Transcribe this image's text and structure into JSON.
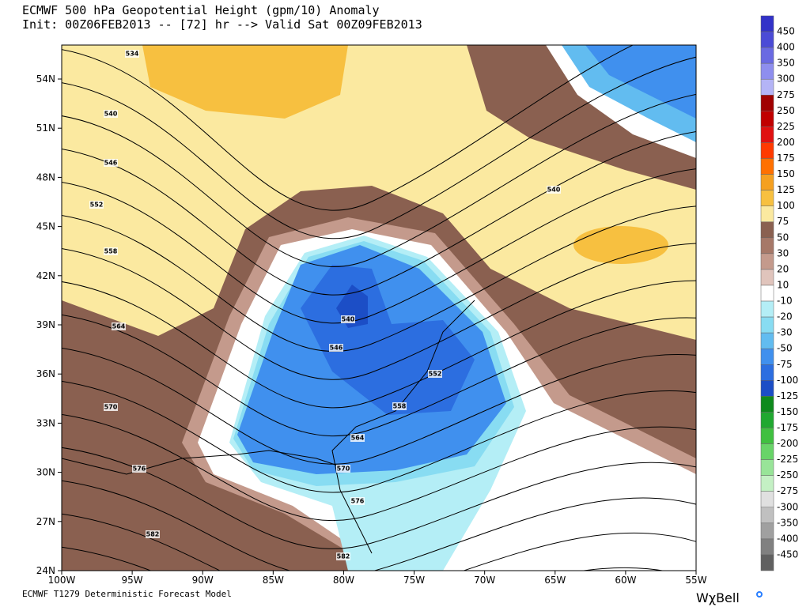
{
  "header": {
    "title": "ECMWF 500 hPa Geopotential Height (gpm/10) Anomaly",
    "subtitle": "Init: 00Z06FEB2013 -- [72] hr --> Valid Sat 00Z09FEB2013"
  },
  "map": {
    "lat_labels": [
      "54N",
      "51N",
      "48N",
      "45N",
      "42N",
      "39N",
      "36N",
      "33N",
      "30N",
      "27N",
      "24N"
    ],
    "lon_labels": [
      "100W",
      "95W",
      "90W",
      "85W",
      "80W",
      "75W",
      "70W",
      "65W",
      "60W",
      "55W"
    ],
    "contour_labels": [
      "534",
      "540",
      "546",
      "552",
      "558",
      "564",
      "570",
      "576",
      "582",
      "540",
      "546",
      "552",
      "558",
      "564",
      "570",
      "576",
      "582",
      "540"
    ]
  },
  "colorbar": {
    "labels": [
      "450",
      "400",
      "350",
      "300",
      "275",
      "250",
      "225",
      "200",
      "175",
      "150",
      "125",
      "100",
      "75",
      "50",
      "30",
      "20",
      "10",
      "-10",
      "-20",
      "-30",
      "-50",
      "-75",
      "-100",
      "-125",
      "-150",
      "-175",
      "-200",
      "-225",
      "-250",
      "-275",
      "-300",
      "-350",
      "-400",
      "-450"
    ],
    "colors": [
      "#3232c8",
      "#4b4bd6",
      "#6a6ae2",
      "#8e8eee",
      "#b4b4f6",
      "#a00000",
      "#c00000",
      "#e01010",
      "#ff3a00",
      "#ff7000",
      "#f5a020",
      "#f7c040",
      "#fbe9a0",
      "#8a6050",
      "#a67868",
      "#c49a8c",
      "#e0c4bc",
      "#ffffff",
      "#b4eef6",
      "#88dcf2",
      "#62bcf0",
      "#4090ee",
      "#2c6ee0",
      "#1c4ec6",
      "#0e8a1c",
      "#20a830",
      "#40c040",
      "#68d468",
      "#98e498",
      "#c4f0c4",
      "#e0e0e0",
      "#c0c0c0",
      "#a0a0a0",
      "#808080",
      "#606060"
    ]
  },
  "footer": {
    "model": "ECMWF T1279 Deterministic Forecast Model",
    "logo": "WχBell"
  }
}
